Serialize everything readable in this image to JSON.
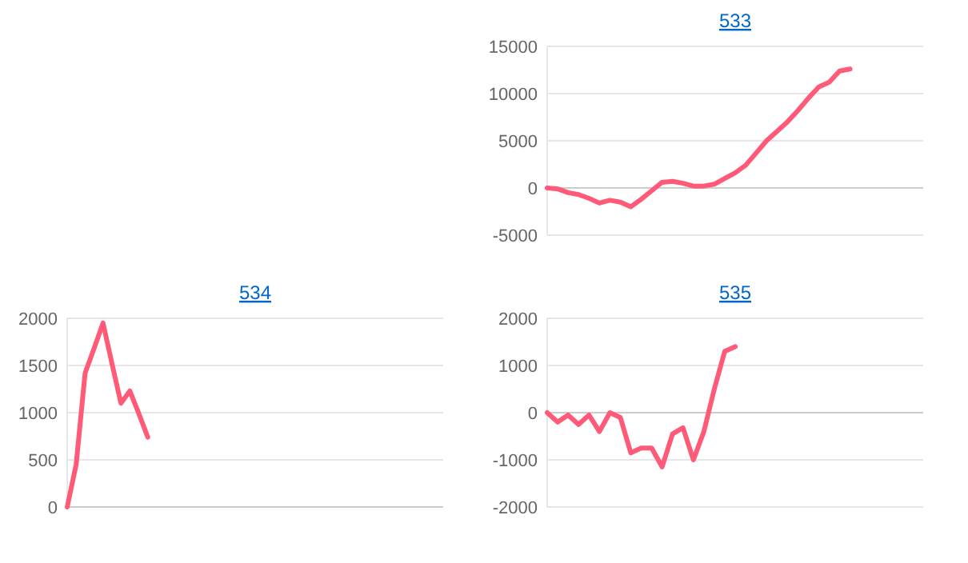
{
  "chart_data": [
    {
      "type": "line",
      "title": "533",
      "categories": [
        null,
        null,
        null,
        null,
        null,
        null,
        null,
        null,
        null,
        null,
        null,
        null,
        null,
        null,
        null,
        null,
        null,
        null,
        null,
        null,
        null,
        null,
        null,
        null,
        null,
        null,
        null,
        null,
        null,
        null,
        null,
        null,
        null,
        null,
        null,
        null,
        null
      ],
      "series": [
        {
          "color": "#ff5a78",
          "values": [
            0,
            -100,
            -500,
            -700,
            -1100,
            -1600,
            -1300,
            -1500,
            -2000,
            -1200,
            -300,
            600,
            700,
            500,
            200,
            200,
            400,
            1000,
            1600,
            2400,
            3700,
            5000,
            6000,
            7000,
            8200,
            9500,
            10700,
            11200,
            12400,
            12600,
            null,
            null,
            null,
            null,
            null,
            null,
            null
          ]
        }
      ],
      "ylim": [
        -5000,
        15000
      ],
      "yticks": [
        -5000,
        0,
        5000,
        10000,
        15000
      ],
      "grid": "y",
      "tick_labels": "y",
      "marker": "none",
      "line_style": "solid"
    },
    {
      "type": "line",
      "title": "534",
      "categories": [
        null,
        null,
        null,
        null,
        null,
        null,
        null,
        null,
        null,
        null,
        null,
        null,
        null,
        null,
        null,
        null,
        null,
        null,
        null,
        null,
        null,
        null,
        null,
        null,
        null,
        null,
        null,
        null,
        null,
        null,
        null,
        null,
        null,
        null,
        null,
        null,
        null,
        null,
        null,
        null,
        null,
        null,
        null
      ],
      "series": [
        {
          "color": "#ff5a78",
          "values": [
            0,
            450,
            1420,
            1680,
            1950,
            1520,
            1100,
            1230,
            990,
            740,
            null,
            null,
            null,
            null,
            null,
            null,
            null,
            null,
            null,
            null,
            null,
            null,
            null,
            null,
            null,
            null,
            null,
            null,
            null,
            null,
            null,
            null,
            null,
            null,
            null,
            null,
            null,
            null,
            null,
            null,
            null,
            null,
            null
          ]
        }
      ],
      "ylim": [
        0,
        2000
      ],
      "yticks": [
        0,
        500,
        1000,
        1500,
        2000
      ],
      "grid": "y",
      "tick_labels": "y",
      "marker": "none",
      "line_style": "solid"
    },
    {
      "type": "line",
      "title": "535",
      "categories": [
        null,
        null,
        null,
        null,
        null,
        null,
        null,
        null,
        null,
        null,
        null,
        null,
        null,
        null,
        null,
        null,
        null,
        null,
        null,
        null,
        null,
        null,
        null,
        null,
        null,
        null,
        null,
        null,
        null,
        null,
        null,
        null,
        null,
        null,
        null,
        null,
        null
      ],
      "series": [
        {
          "color": "#ff5a78",
          "values": [
            0,
            -200,
            -50,
            -250,
            -50,
            -400,
            0,
            -100,
            -850,
            -750,
            -750,
            -1150,
            -450,
            -320,
            -1000,
            -400,
            500,
            1300,
            1400,
            null,
            null,
            null,
            null,
            null,
            null,
            null,
            null,
            null,
            null,
            null,
            null,
            null,
            null,
            null,
            null,
            null,
            null
          ]
        }
      ],
      "ylim": [
        -2000,
        2000
      ],
      "yticks": [
        -2000,
        -1000,
        0,
        1000,
        2000
      ],
      "grid": "y",
      "tick_labels": "y",
      "marker": "none",
      "line_style": "solid"
    }
  ]
}
